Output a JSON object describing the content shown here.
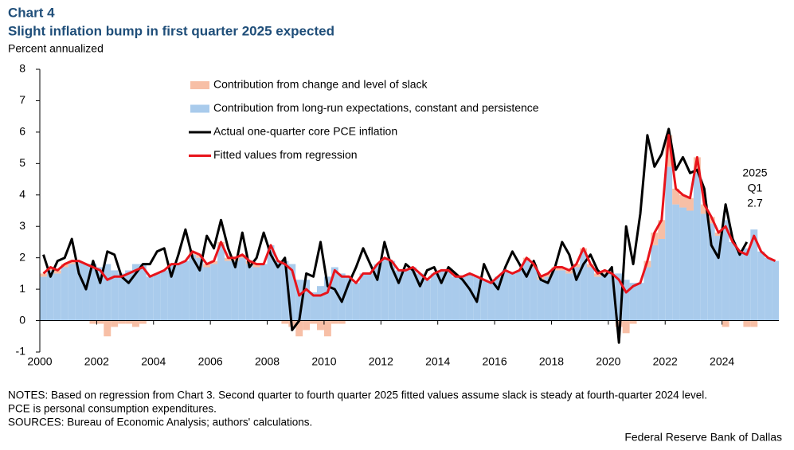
{
  "chart_data": {
    "type": "bar-line",
    "label": "Chart 4",
    "title": "Slight inflation bump in first quarter 2025 expected",
    "subtitle": "Percent annualized",
    "x": [
      2000.125,
      2000.375,
      2000.625,
      2000.875,
      2001.125,
      2001.375,
      2001.625,
      2001.875,
      2002.125,
      2002.375,
      2002.625,
      2002.875,
      2003.125,
      2003.375,
      2003.625,
      2003.875,
      2004.125,
      2004.375,
      2004.625,
      2004.875,
      2005.125,
      2005.375,
      2005.625,
      2005.875,
      2006.125,
      2006.375,
      2006.625,
      2006.875,
      2007.125,
      2007.375,
      2007.625,
      2007.875,
      2008.125,
      2008.375,
      2008.625,
      2008.875,
      2009.125,
      2009.375,
      2009.625,
      2009.875,
      2010.125,
      2010.375,
      2010.625,
      2010.875,
      2011.125,
      2011.375,
      2011.625,
      2011.875,
      2012.125,
      2012.375,
      2012.625,
      2012.875,
      2013.125,
      2013.375,
      2013.625,
      2013.875,
      2014.125,
      2014.375,
      2014.625,
      2014.875,
      2015.125,
      2015.375,
      2015.625,
      2015.875,
      2016.125,
      2016.375,
      2016.625,
      2016.875,
      2017.125,
      2017.375,
      2017.625,
      2017.875,
      2018.125,
      2018.375,
      2018.625,
      2018.875,
      2019.125,
      2019.375,
      2019.625,
      2019.875,
      2020.125,
      2020.375,
      2020.625,
      2020.875,
      2021.125,
      2021.375,
      2021.625,
      2021.875,
      2022.125,
      2022.375,
      2022.625,
      2022.875,
      2023.125,
      2023.375,
      2023.625,
      2023.875,
      2024.125,
      2024.375,
      2024.625,
      2024.875,
      2025.125,
      2025.375,
      2025.625,
      2025.875
    ],
    "series": [
      {
        "name": "Contribution from change and level of slack",
        "type": "bar",
        "color": "#f7bfa6",
        "values": [
          0.1,
          0.1,
          0.1,
          0.1,
          0.1,
          0,
          0,
          -0.1,
          -0.1,
          -0.5,
          -0.2,
          -0.1,
          -0.1,
          -0.2,
          -0.1,
          0,
          0,
          0,
          0,
          0,
          0,
          0.1,
          0.1,
          0.1,
          0.1,
          0.1,
          0.1,
          0.1,
          0.1,
          0.1,
          0.1,
          0,
          0,
          0,
          -0.1,
          -0.2,
          -0.5,
          -0.3,
          -0.1,
          -0.3,
          -0.5,
          -0.1,
          -0.1,
          0,
          0,
          0,
          0,
          0,
          0,
          0,
          0,
          0,
          0,
          0,
          0,
          0,
          0,
          0,
          0,
          0,
          0,
          0,
          0,
          0,
          0,
          0,
          0,
          0,
          0.1,
          0.1,
          0.1,
          0.1,
          0.1,
          0.1,
          0.1,
          0.1,
          0.1,
          0.1,
          0.1,
          0.1,
          0,
          -0.2,
          -0.4,
          -0.1,
          0,
          0.2,
          0.4,
          0.6,
          1.0,
          0.5,
          0.4,
          0.4,
          0.5,
          0.3,
          0.2,
          0.1,
          -0.2,
          0,
          0,
          -0.2,
          -0.2,
          0,
          0,
          0
        ]
      },
      {
        "name": "Contribution from long-run expectations, constant and persistence",
        "type": "bar",
        "color": "#a9cbec",
        "values": [
          1.4,
          1.6,
          1.5,
          1.7,
          1.8,
          1.9,
          1.8,
          1.8,
          1.7,
          1.8,
          1.6,
          1.5,
          1.6,
          1.8,
          1.8,
          1.4,
          1.5,
          1.6,
          1.8,
          1.8,
          1.9,
          2.1,
          2.0,
          1.7,
          1.8,
          2.4,
          1.9,
          1.9,
          2.0,
          1.8,
          1.7,
          1.8,
          2.4,
          1.9,
          1.9,
          1.8,
          1.3,
          1.3,
          0.9,
          1.1,
          1.4,
          1.7,
          1.5,
          1.4,
          1.2,
          1.5,
          1.5,
          1.8,
          2.0,
          1.9,
          1.6,
          1.6,
          1.7,
          1.5,
          1.3,
          1.5,
          1.6,
          1.6,
          1.4,
          1.4,
          1.5,
          1.4,
          1.3,
          1.2,
          1.4,
          1.6,
          1.5,
          1.6,
          1.9,
          1.7,
          1.3,
          1.4,
          1.6,
          1.6,
          1.5,
          1.7,
          2.2,
          1.7,
          1.4,
          1.5,
          1.5,
          1.5,
          1.3,
          1.2,
          1.2,
          1.7,
          2.4,
          2.6,
          4.9,
          3.7,
          3.6,
          3.5,
          4.7,
          3.4,
          3.1,
          2.7,
          3.2,
          2.5,
          2.2,
          2.3,
          2.9,
          2.2,
          2.0,
          1.9
        ]
      },
      {
        "name": "Actual one-quarter core PCE inflation",
        "type": "line",
        "color": "#000000",
        "values": [
          2.1,
          1.4,
          1.9,
          2.0,
          2.6,
          1.5,
          1.0,
          1.9,
          1.2,
          2.2,
          2.1,
          1.4,
          1.2,
          1.5,
          1.8,
          1.8,
          2.2,
          2.3,
          1.4,
          2.1,
          2.9,
          2.0,
          1.6,
          2.7,
          2.3,
          3.2,
          2.3,
          1.7,
          2.8,
          1.7,
          2.0,
          2.8,
          2.1,
          1.7,
          2.0,
          -0.3,
          0.0,
          1.5,
          1.4,
          2.5,
          1.1,
          1.0,
          0.6,
          1.2,
          1.7,
          2.3,
          1.8,
          1.3,
          2.5,
          1.7,
          1.2,
          1.8,
          1.6,
          1.1,
          1.6,
          1.7,
          1.2,
          1.7,
          1.5,
          1.3,
          1.0,
          0.6,
          1.8,
          1.3,
          1.0,
          1.7,
          2.2,
          1.8,
          1.4,
          1.9,
          1.3,
          1.2,
          1.7,
          2.5,
          2.1,
          1.3,
          1.8,
          2.1,
          1.6,
          1.4,
          1.7,
          -0.7,
          3.0,
          1.8,
          3.4,
          5.9,
          4.9,
          5.3,
          6.1,
          4.8,
          5.2,
          4.7,
          4.8,
          4.2,
          2.4,
          2.0,
          3.7,
          2.6,
          2.1,
          2.5,
          null,
          null,
          null,
          null
        ]
      },
      {
        "name": "Fitted values from regression",
        "type": "line",
        "color": "#e8141b",
        "values": [
          1.5,
          1.7,
          1.6,
          1.8,
          1.9,
          1.9,
          1.8,
          1.7,
          1.6,
          1.3,
          1.4,
          1.4,
          1.5,
          1.6,
          1.7,
          1.4,
          1.5,
          1.6,
          1.8,
          1.8,
          1.9,
          2.2,
          2.1,
          1.8,
          1.9,
          2.5,
          2.0,
          2.0,
          2.1,
          1.9,
          1.8,
          1.8,
          2.4,
          1.9,
          1.8,
          1.6,
          0.8,
          1.0,
          0.8,
          0.8,
          0.9,
          1.6,
          1.4,
          1.4,
          1.2,
          1.5,
          1.5,
          1.8,
          2.0,
          1.9,
          1.6,
          1.6,
          1.7,
          1.5,
          1.3,
          1.5,
          1.6,
          1.6,
          1.4,
          1.4,
          1.5,
          1.4,
          1.3,
          1.2,
          1.4,
          1.6,
          1.5,
          1.6,
          2.0,
          1.8,
          1.4,
          1.5,
          1.7,
          1.7,
          1.6,
          1.8,
          2.3,
          1.8,
          1.5,
          1.6,
          1.5,
          1.3,
          0.9,
          1.1,
          1.2,
          1.9,
          2.8,
          3.2,
          5.9,
          4.2,
          4.0,
          3.9,
          5.2,
          3.7,
          3.3,
          2.8,
          3.0,
          2.5,
          2.2,
          2.1,
          2.7,
          2.2,
          2.0,
          1.9
        ]
      }
    ],
    "xlim": [
      2000,
      2026
    ],
    "xticks": [
      2000,
      2002,
      2004,
      2006,
      2008,
      2010,
      2012,
      2014,
      2016,
      2018,
      2020,
      2022,
      2024
    ],
    "ylim": [
      -1,
      8
    ],
    "yticks": [
      -1,
      0,
      1,
      2,
      3,
      4,
      5,
      6,
      7,
      8
    ],
    "annotations": [
      {
        "text": "2025",
        "color": "#000000"
      },
      {
        "text": "Q1",
        "color": "#000000"
      },
      {
        "text": "2.7",
        "color": "#e8141b"
      }
    ],
    "notes": [
      "NOTES: Based on regression from Chart 3. Second quarter to fourth quarter 2025 fitted values assume slack is steady at fourth-quarter 2024 level.",
      "PCE is personal consumption expenditures.",
      "SOURCES: Bureau of Economic Analysis; authors' calculations."
    ],
    "credit": "Federal Reserve Bank of Dallas"
  }
}
